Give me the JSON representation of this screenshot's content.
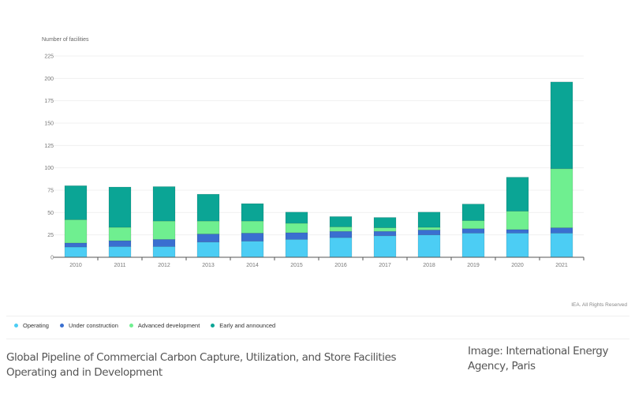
{
  "chart_data": {
    "type": "bar",
    "stacked": true,
    "title": "",
    "xlabel": "",
    "ylabel": "Number of facilities",
    "ylim": [
      0,
      225
    ],
    "yticks": [
      0,
      25,
      50,
      75,
      100,
      125,
      150,
      175,
      200,
      225
    ],
    "grid": true,
    "legend_position": "bottom-left",
    "categories": [
      "2010",
      "2011",
      "2012",
      "2013",
      "2014",
      "2015",
      "2016",
      "2017",
      "2018",
      "2019",
      "2020",
      "2021"
    ],
    "series": [
      {
        "name": "Operating",
        "color": "#4ccdf4",
        "values": [
          11.5,
          12,
          12,
          17,
          18,
          20,
          22,
          24,
          25,
          27,
          27,
          27
        ]
      },
      {
        "name": "Under construction",
        "color": "#3a6fd0",
        "values": [
          4.5,
          6.5,
          8,
          9,
          9,
          7.5,
          7,
          5,
          5.5,
          5,
          4,
          6
        ]
      },
      {
        "name": "Advanced development",
        "color": "#6fef90",
        "values": [
          26,
          15,
          20.5,
          14.5,
          13.5,
          10.5,
          5,
          4,
          3,
          9,
          20.5,
          66
        ]
      },
      {
        "name": "Early and announced",
        "color": "#0ba595",
        "values": [
          38,
          45,
          38.5,
          30,
          19.5,
          12.5,
          11.5,
          11.5,
          17,
          18.5,
          38,
          97
        ]
      }
    ]
  },
  "legend": [
    {
      "label": "Operating",
      "color": "#4ccdf4"
    },
    {
      "label": "Under construction",
      "color": "#3a6fd0"
    },
    {
      "label": "Advanced development",
      "color": "#6fef90"
    },
    {
      "label": "Early and announced",
      "color": "#0ba595"
    }
  ],
  "rights": "IEA. All Rights Reserved",
  "caption": "Global Pipeline of Commercial Carbon Capture, Utilization, and Store Facilities Operating and in Development",
  "credit": "Image: International Energy Agency, Paris"
}
